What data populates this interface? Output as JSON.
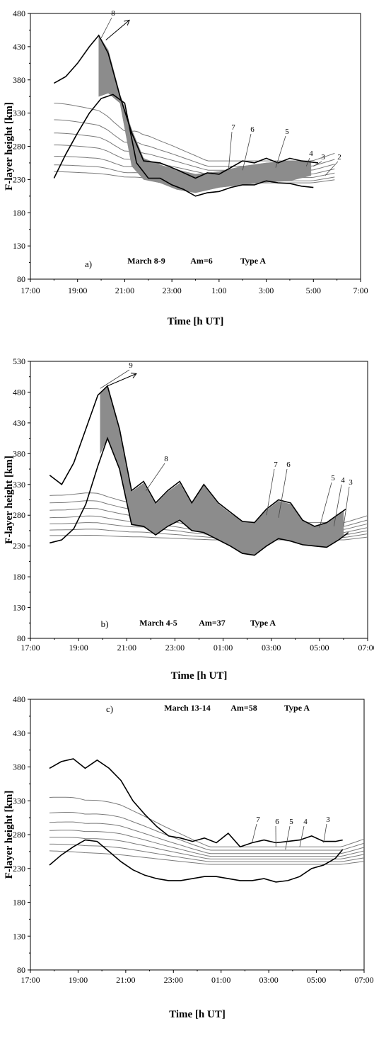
{
  "chart_data": [
    {
      "type": "line",
      "panel_label": "a)",
      "annotation": {
        "date": "March 8-9",
        "am": "Am=6",
        "type": "Type A"
      },
      "xlabel": "Time [h UT]",
      "ylabel": "F-layer height [km]",
      "xlim": [
        17,
        31
      ],
      "ylim": [
        80,
        480
      ],
      "x_ticks": [
        "17:00",
        "19:00",
        "21:00",
        "23:00",
        "1:00",
        "3:00",
        "5:00",
        "7:00"
      ],
      "y_ticks": [
        "80",
        "130",
        "180",
        "230",
        "280",
        "330",
        "380",
        "430",
        "480"
      ],
      "upper_boundary": {
        "x": [
          18,
          18.5,
          19,
          19.5,
          19.9,
          20.3,
          20.8,
          21.3,
          21.8,
          22.5,
          23.2,
          24,
          24.5,
          25,
          25.5,
          26,
          26.5,
          27,
          27.5,
          28,
          28.5,
          29.2
        ],
        "y": [
          375,
          385,
          405,
          430,
          447,
          420,
          355,
          300,
          258,
          255,
          245,
          232,
          240,
          238,
          248,
          258,
          255,
          262,
          255,
          262,
          258,
          255
        ]
      },
      "lower_boundary": {
        "x": [
          18,
          18.5,
          19,
          19.5,
          20,
          20.5,
          21,
          21.5,
          22,
          22.5,
          23,
          23.5,
          24,
          24.5,
          25,
          25.5,
          26,
          26.5,
          27,
          27.5,
          28,
          28.5,
          29
        ],
        "y": [
          232,
          268,
          300,
          330,
          352,
          358,
          345,
          255,
          232,
          232,
          222,
          215,
          205,
          210,
          212,
          218,
          222,
          222,
          228,
          225,
          224,
          220,
          218
        ]
      },
      "contours": [
        {
          "label": "8",
          "y_start": 345,
          "y_late": 258
        },
        {
          "label": "7",
          "y_start": 320,
          "y_late": 250
        },
        {
          "label": "6",
          "y_start": 300,
          "y_late": 244
        },
        {
          "label": "5",
          "y_start": 282,
          "y_late": 238
        },
        {
          "label": "4",
          "y_start": 265,
          "y_late": 233
        },
        {
          "label": "3",
          "y_start": 252,
          "y_late": 228
        },
        {
          "label": "2",
          "y_start": 242,
          "y_late": 225
        }
      ],
      "contour_labels": [
        "8",
        "7",
        "6",
        "5",
        "4",
        "3",
        "2"
      ],
      "shaded_band": {
        "x": [
          19.9,
          20.3,
          20.8,
          21.3,
          21.8,
          22.5,
          23.2,
          24,
          25,
          26,
          27,
          28,
          28.9
        ],
        "upper": [
          447,
          425,
          358,
          305,
          262,
          252,
          245,
          238,
          242,
          250,
          255,
          258,
          258
        ],
        "lower": [
          355,
          360,
          345,
          250,
          230,
          225,
          215,
          210,
          218,
          222,
          226,
          228,
          236
        ]
      }
    },
    {
      "type": "line",
      "panel_label": "b)",
      "annotation": {
        "date": "March 4-5",
        "am": "Am=37",
        "type": "Type A"
      },
      "xlabel": "Time [h UT]",
      "ylabel": "F-layer height [km]",
      "xlim": [
        17,
        31
      ],
      "ylim": [
        80,
        530
      ],
      "x_ticks": [
        "17:00",
        "19:00",
        "21:00",
        "23:00",
        "01:00",
        "03:00",
        "05:00",
        "07:00"
      ],
      "y_ticks": [
        "80",
        "130",
        "180",
        "230",
        "280",
        "330",
        "380",
        "430",
        "480",
        "530"
      ],
      "upper_boundary": {
        "x": [
          17.8,
          18.3,
          18.8,
          19.3,
          19.8,
          20.2,
          20.7,
          21.2,
          21.7,
          22.2,
          22.7,
          23.2,
          23.7,
          24.2,
          24.8,
          25.3,
          25.8,
          26.3,
          26.8,
          27.3,
          27.8,
          28.3,
          28.8,
          29.3,
          29.8,
          30.1
        ],
        "y": [
          345,
          330,
          365,
          420,
          475,
          490,
          420,
          320,
          335,
          300,
          320,
          335,
          300,
          330,
          300,
          285,
          270,
          268,
          290,
          305,
          300,
          272,
          262,
          268,
          282,
          290
        ]
      },
      "lower_boundary": {
        "x": [
          17.8,
          18.3,
          18.8,
          19.3,
          19.8,
          20.2,
          20.7,
          21.2,
          21.7,
          22.2,
          22.7,
          23.2,
          23.7,
          24.2,
          24.8,
          25.3,
          25.8,
          26.3,
          26.8,
          27.3,
          27.8,
          28.3,
          28.8,
          29.3,
          29.8,
          30.2
        ],
        "y": [
          235,
          240,
          258,
          298,
          360,
          405,
          355,
          265,
          262,
          248,
          262,
          272,
          255,
          252,
          240,
          230,
          218,
          215,
          230,
          242,
          238,
          232,
          230,
          228,
          240,
          252
        ]
      },
      "contours": [
        {
          "label": "9",
          "y_start": 312,
          "y_late": 268
        },
        {
          "label": "8",
          "y_start": 300,
          "y_late": 262
        },
        {
          "label": "7",
          "y_start": 288,
          "y_late": 257
        },
        {
          "label": "6",
          "y_start": 276,
          "y_late": 252
        },
        {
          "label": "5",
          "y_start": 266,
          "y_late": 248
        },
        {
          "label": "4",
          "y_start": 256,
          "y_late": 244
        },
        {
          "label": "3",
          "y_start": 247,
          "y_late": 240
        }
      ],
      "contour_labels": [
        "9",
        "8",
        "7",
        "6",
        "5",
        "4",
        "3"
      ],
      "shaded_band": {
        "x": [
          19.9,
          20.2,
          20.7,
          21.2,
          21.7,
          22.2,
          22.7,
          23.2,
          23.7,
          24.2,
          24.8,
          25.3,
          25.8,
          26.3,
          26.8,
          27.3,
          27.8,
          28.3,
          28.8,
          29.3,
          29.8,
          30.0
        ],
        "upper": [
          478,
          488,
          418,
          318,
          332,
          298,
          318,
          332,
          298,
          328,
          298,
          283,
          270,
          268,
          288,
          303,
          298,
          272,
          262,
          268,
          282,
          286
        ],
        "lower": [
          380,
          405,
          355,
          265,
          262,
          248,
          262,
          272,
          255,
          252,
          240,
          230,
          218,
          215,
          230,
          242,
          238,
          232,
          230,
          228,
          240,
          248
        ]
      }
    },
    {
      "type": "line",
      "panel_label": "c)",
      "annotation": {
        "date": "March 13-14",
        "am": "Am=58",
        "type": "Type A"
      },
      "xlabel": "Time [h UT]",
      "ylabel": "F-layer height [km]",
      "xlim": [
        17,
        31
      ],
      "ylim": [
        80,
        480
      ],
      "x_ticks": [
        "17:00",
        "19:00",
        "21:00",
        "23:00",
        "01:00",
        "03:00",
        "05:00",
        "07:00"
      ],
      "y_ticks": [
        "80",
        "130",
        "180",
        "230",
        "280",
        "330",
        "380",
        "430",
        "480"
      ],
      "upper_boundary": {
        "x": [
          17.8,
          18.3,
          18.8,
          19.3,
          19.8,
          20.3,
          20.8,
          21.3,
          21.8,
          22.3,
          22.8,
          23.3,
          23.8,
          24.3,
          24.8,
          25.3,
          25.8,
          26.3,
          26.8,
          27.3,
          27.8,
          28.3,
          28.8,
          29.3,
          29.8,
          30.1
        ],
        "y": [
          378,
          388,
          392,
          378,
          390,
          378,
          360,
          330,
          310,
          292,
          278,
          275,
          270,
          275,
          268,
          282,
          262,
          268,
          272,
          268,
          270,
          272,
          278,
          270,
          270,
          272
        ]
      },
      "lower_boundary": {
        "x": [
          17.8,
          18.3,
          18.8,
          19.3,
          19.8,
          20.3,
          20.8,
          21.3,
          21.8,
          22.3,
          22.8,
          23.3,
          23.8,
          24.3,
          24.8,
          25.3,
          25.8,
          26.3,
          26.8,
          27.3,
          27.8,
          28.3,
          28.8,
          29.3,
          29.8,
          30.1
        ],
        "y": [
          235,
          250,
          262,
          272,
          270,
          255,
          240,
          228,
          220,
          215,
          212,
          212,
          215,
          218,
          218,
          215,
          212,
          212,
          215,
          210,
          212,
          218,
          230,
          235,
          245,
          258
        ]
      },
      "contours": [
        {
          "label": "7",
          "y_start": 335,
          "y_late": 262
        },
        {
          "label": "6",
          "y_start": 312,
          "y_late": 257
        },
        {
          "label": "5",
          "y_start": 298,
          "y_late": 252
        },
        {
          "label": "4",
          "y_start": 286,
          "y_late": 248
        },
        {
          "label": "3",
          "y_start": 276,
          "y_late": 244
        },
        {
          "label": "",
          "y_start": 266,
          "y_late": 240
        },
        {
          "label": "",
          "y_start": 256,
          "y_late": 236
        }
      ],
      "contour_labels": [
        "7",
        "6",
        "5",
        "4",
        "3"
      ]
    }
  ]
}
